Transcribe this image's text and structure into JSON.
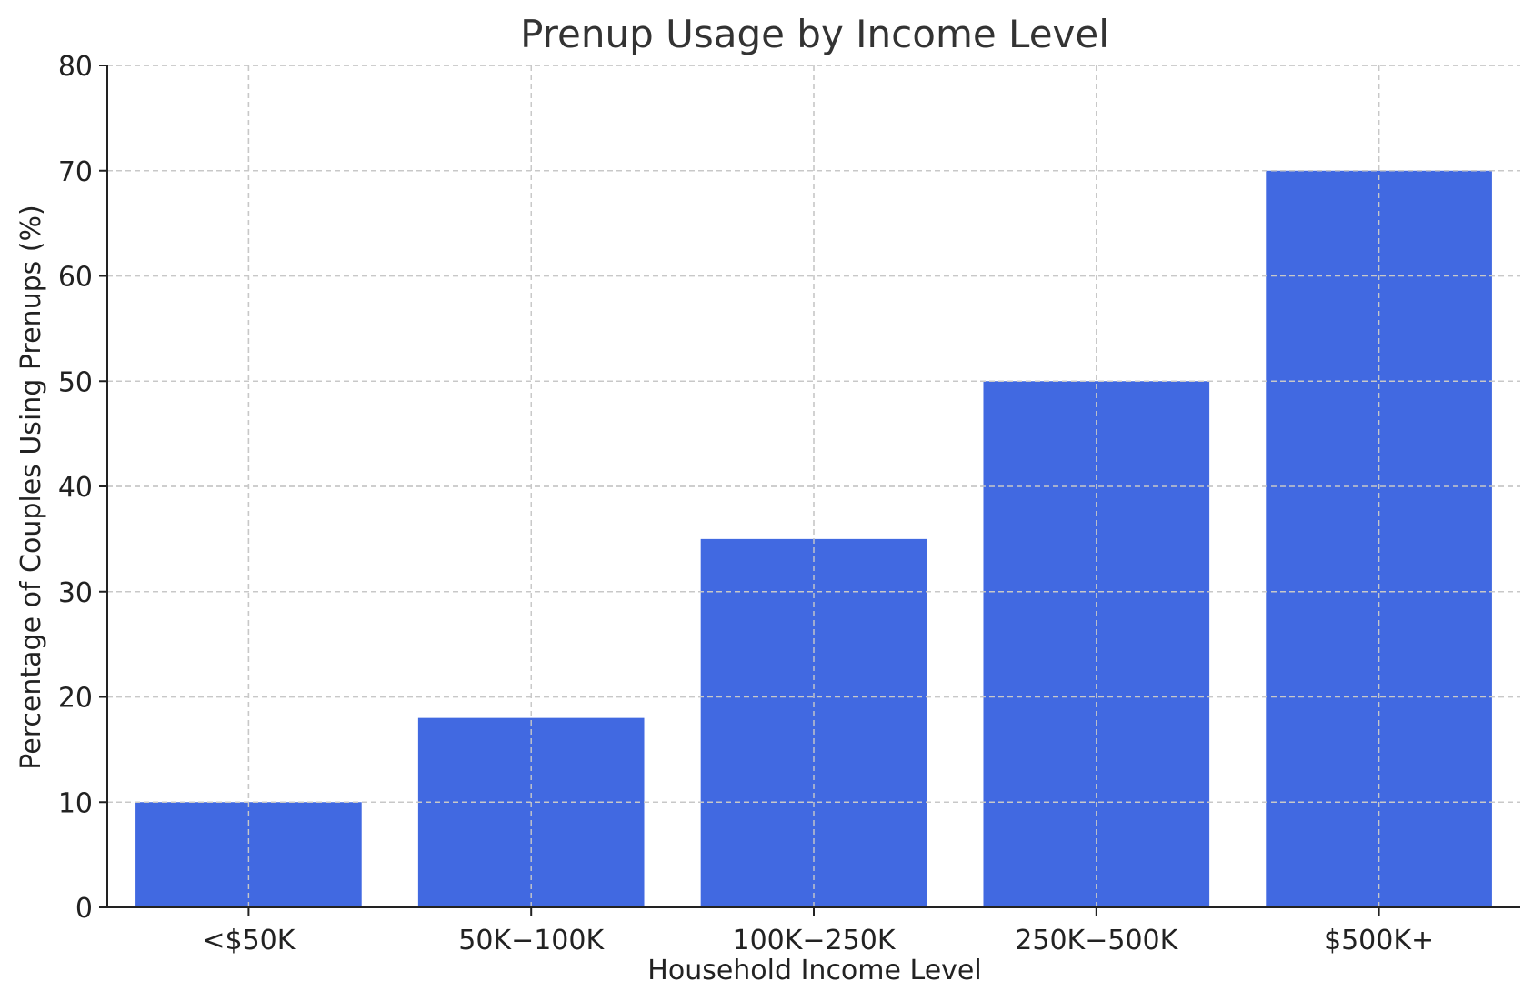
{
  "chart_data": {
    "type": "bar",
    "title": "Prenup Usage by Income Level",
    "xlabel": "Household Income Level",
    "ylabel": "Percentage of Couples Using Prenups (%)",
    "categories": [
      "<$50K",
      "50K−100K",
      "100K−250K",
      "250K−500K",
      "$500K+"
    ],
    "values": [
      10,
      18,
      35,
      50,
      70
    ],
    "ylim": [
      0,
      80
    ],
    "yticks": [
      0,
      10,
      20,
      30,
      40,
      50,
      60,
      70,
      80
    ],
    "grid": true,
    "bar_color": "#4169e1"
  }
}
